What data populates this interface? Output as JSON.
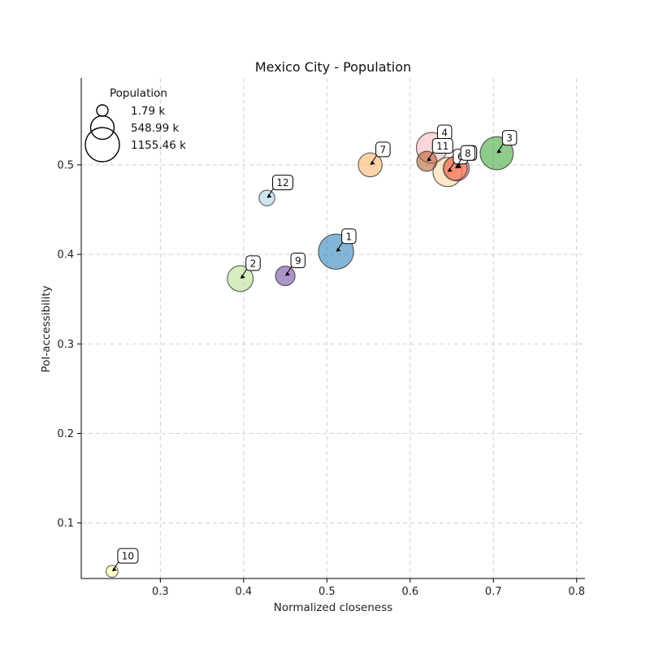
{
  "chart_data": {
    "type": "scatter",
    "title": "Mexico City - Population",
    "xlabel": "Normalized closeness",
    "ylabel": "PoI-accessibility",
    "xlim": [
      0.205,
      0.81
    ],
    "ylim": [
      0.038,
      0.597
    ],
    "xticks": [
      0.3,
      0.4,
      0.5,
      0.6,
      0.7,
      0.8
    ],
    "yticks": [
      0.1,
      0.2,
      0.3,
      0.4,
      0.5
    ],
    "xtick_labels": [
      "0.3",
      "0.4",
      "0.5",
      "0.6",
      "0.7",
      "0.8"
    ],
    "ytick_labels": [
      "0.1",
      "0.2",
      "0.3",
      "0.4",
      "0.5"
    ],
    "grid": true,
    "size_variable": "Population",
    "legend": {
      "title": "Population",
      "placement": "top-left",
      "entries": [
        {
          "label": "1.79 k",
          "value": 1.79
        },
        {
          "label": "548.99 k",
          "value": 548.99
        },
        {
          "label": "1155.46 k",
          "value": 1155.46
        }
      ]
    },
    "points": [
      {
        "id": "4",
        "x": 0.626,
        "y": 0.519,
        "size": 1000,
        "color": "#fbb4b9"
      },
      {
        "id": "5",
        "x": 0.656,
        "y": 0.496,
        "size": 650,
        "color": "#e34a5c"
      },
      {
        "id": "6",
        "x": 0.645,
        "y": 0.492,
        "size": 900,
        "color": "#fdd49e"
      },
      {
        "id": "8",
        "x": 0.654,
        "y": 0.496,
        "size": 600,
        "color": "#fc8d59"
      },
      {
        "id": "11",
        "x": 0.62,
        "y": 0.504,
        "size": 420,
        "color": "#b15928"
      },
      {
        "id": "3",
        "x": 0.704,
        "y": 0.513,
        "size": 1150,
        "color": "#33a02c"
      },
      {
        "id": "7",
        "x": 0.552,
        "y": 0.5,
        "size": 600,
        "color": "#fdae61"
      },
      {
        "id": "12",
        "x": 0.428,
        "y": 0.463,
        "size": 260,
        "color": "#a6cee3"
      },
      {
        "id": "1",
        "x": 0.511,
        "y": 0.403,
        "size": 1300,
        "color": "#1f78b4"
      },
      {
        "id": "2",
        "x": 0.396,
        "y": 0.373,
        "size": 700,
        "color": "#b2df8a"
      },
      {
        "id": "9",
        "x": 0.45,
        "y": 0.376,
        "size": 400,
        "color": "#6a3d9a"
      },
      {
        "id": "10",
        "x": 0.242,
        "y": 0.046,
        "size": 150,
        "color": "#ffff99"
      }
    ]
  }
}
